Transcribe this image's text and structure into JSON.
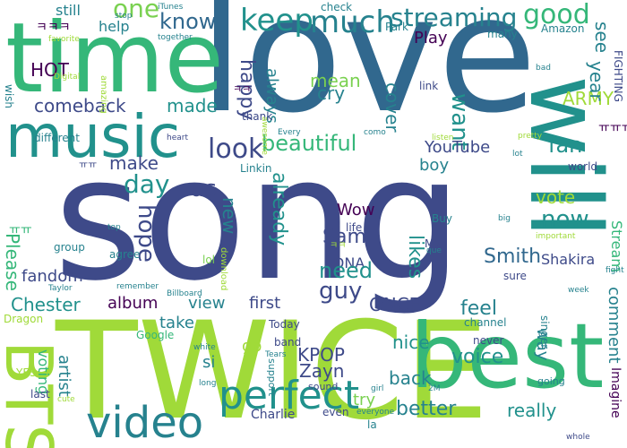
{
  "words": {
    "song": "song",
    "love": "love",
    "time": "time",
    "twice": "TWICE",
    "best": "best",
    "will": "will",
    "music": "music",
    "bts": "BTS",
    "video": "video",
    "perfect": "perfect",
    "keep": "keep",
    "much": "much",
    "streaming": "streaming",
    "good": "good",
    "one": "one",
    "know": "know",
    "help": "help",
    "still": "still",
    "hot": "HOT",
    "happy": "happy",
    "mean": "mean",
    "cry": "cry",
    "made": "made",
    "comeback": "comeback",
    "always": "always",
    "cover": "cover",
    "want": "want",
    "army": "ARMY",
    "year": "year",
    "see": "see",
    "play": "Play",
    "look": "look",
    "beautiful": "beautiful",
    "fan": "fan",
    "youtube": "YouTube",
    "boy": "boy",
    "make": "make",
    "day": "day",
    "us": "us",
    "hope": "hope",
    "new": "new",
    "already": "already",
    "vote": "vote",
    "now": "now",
    "wow": "Wow",
    "sam": "Sam",
    "smith": "Smith",
    "dna": "DNA",
    "likes": "likes",
    "shakira": "Shakira",
    "please": "Please",
    "fandom": "fandom",
    "chester": "Chester",
    "album": "album",
    "view": "view",
    "guy": "guy",
    "need": "need",
    "first": "first",
    "once": "ONCE",
    "feel": "feel",
    "take": "take",
    "go": "go",
    "si": "si",
    "kpop": "KPOP",
    "zayn": "Zayn",
    "nice": "nice",
    "voice": "voice",
    "way": "way",
    "comment": "comment",
    "stream": "Stream",
    "back": "back",
    "better": "better",
    "really": "really",
    "try": "try",
    "artist": "artist",
    "voting": "voting",
    "group": "group",
    "agree": "agree",
    "lol": "lol",
    "life": "life",
    "buy": "Buy",
    "mv": "MV",
    "sure": "sure",
    "singer": "singer",
    "today": "Today",
    "band": "band",
    "channel": "channel",
    "never": "never",
    "charlie": "Charlie",
    "even": "even",
    "la": "la",
    "imagine": "Imagine",
    "fighting": "FIGHTING",
    "world": "world",
    "linkin": "Linkin",
    "different": "different",
    "thank": "thank",
    "link": "link",
    "park": "Park",
    "check": "check",
    "many": "many",
    "amazon": "Amazon",
    "itunes": "iTunes",
    "stop": "stop",
    "together": "together",
    "favorite": "favorite",
    "wish": "wish",
    "amazing": "amazing",
    "digital": "Digital",
    "every": "Every",
    "como": "como",
    "pretty": "pretty",
    "awesome": "awesome",
    "bad": "bad",
    "heart": "heart",
    "listen": "listen",
    "lot": "lot",
    "big": "big",
    "important": "important",
    "fight": "fight",
    "que": "que",
    "top": "top",
    "download": "download",
    "taylor": "Taylor",
    "remember": "remember",
    "billboard": "Billboard",
    "dragon": "Dragon",
    "google": "Google",
    "white": "white",
    "tears": "Tears",
    "long": "long",
    "support": "support",
    "sound": "sound",
    "girl": "girl",
    "going": "going",
    "yes": "YES",
    "last": "last",
    "cute": "cute",
    "everyone": "everyone",
    "whole": "whole",
    "week": "week",
    "two_m": "2M",
    "korean_1": "ㅋㅋㅋ",
    "korean_2": "ㅠㅠㅠ",
    "korean_3": "ㅋㅋ",
    "korean_4": "ㅠㅠ",
    "korean_5": "ㅋㅋ",
    "korean_6": "ㅠㅠ"
  }
}
